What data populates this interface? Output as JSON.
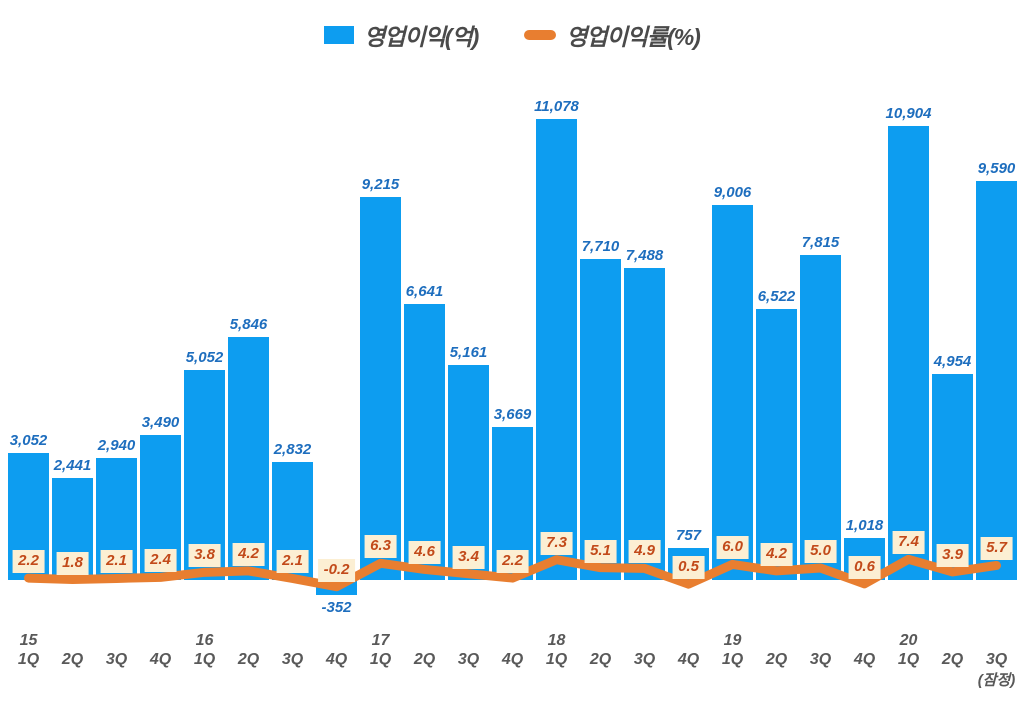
{
  "colors": {
    "bar": "#0D9DF0",
    "bar_label": "#1E6EBE",
    "line": "#E87E30",
    "marker_box_bg": "#FCEFD3",
    "marker_text": "#C24A1A",
    "axis_text": "#595959",
    "legend_text": "#4A4A4A",
    "background": "#FFFFFF"
  },
  "chart_data": {
    "type": "bar",
    "title": "",
    "xlabel": "",
    "ylabel": "",
    "grid": false,
    "legend_position": "top",
    "bar_axis_range": [
      -1000,
      12000
    ],
    "line_axis_unit": "%",
    "categories": [
      "1Q",
      "2Q",
      "3Q",
      "4Q",
      "1Q",
      "2Q",
      "3Q",
      "4Q",
      "1Q",
      "2Q",
      "3Q",
      "4Q",
      "1Q",
      "2Q",
      "3Q",
      "4Q",
      "1Q",
      "2Q",
      "3Q",
      "4Q",
      "1Q",
      "2Q",
      "3Q"
    ],
    "year_markers": [
      {
        "index": 0,
        "label": "15"
      },
      {
        "index": 4,
        "label": "16"
      },
      {
        "index": 8,
        "label": "17"
      },
      {
        "index": 12,
        "label": "18"
      },
      {
        "index": 16,
        "label": "19"
      },
      {
        "index": 20,
        "label": "20"
      }
    ],
    "footnote": {
      "index": 22,
      "label": "(잠정)"
    },
    "series": [
      {
        "name": "영업이익(억)",
        "type": "bar",
        "values": [
          3052,
          2441,
          2940,
          3490,
          5052,
          5846,
          2832,
          -352,
          9215,
          6641,
          5161,
          3669,
          11078,
          7710,
          7488,
          757,
          9006,
          6522,
          7815,
          1018,
          10904,
          4954,
          9590
        ]
      },
      {
        "name": "영업이익률(%)",
        "type": "line",
        "values": [
          2.2,
          1.8,
          2.1,
          2.4,
          3.8,
          4.2,
          2.1,
          -0.2,
          6.3,
          4.6,
          3.4,
          2.2,
          7.3,
          5.1,
          4.9,
          0.5,
          6.0,
          4.2,
          5.0,
          0.6,
          7.4,
          3.9,
          5.7
        ]
      }
    ]
  }
}
